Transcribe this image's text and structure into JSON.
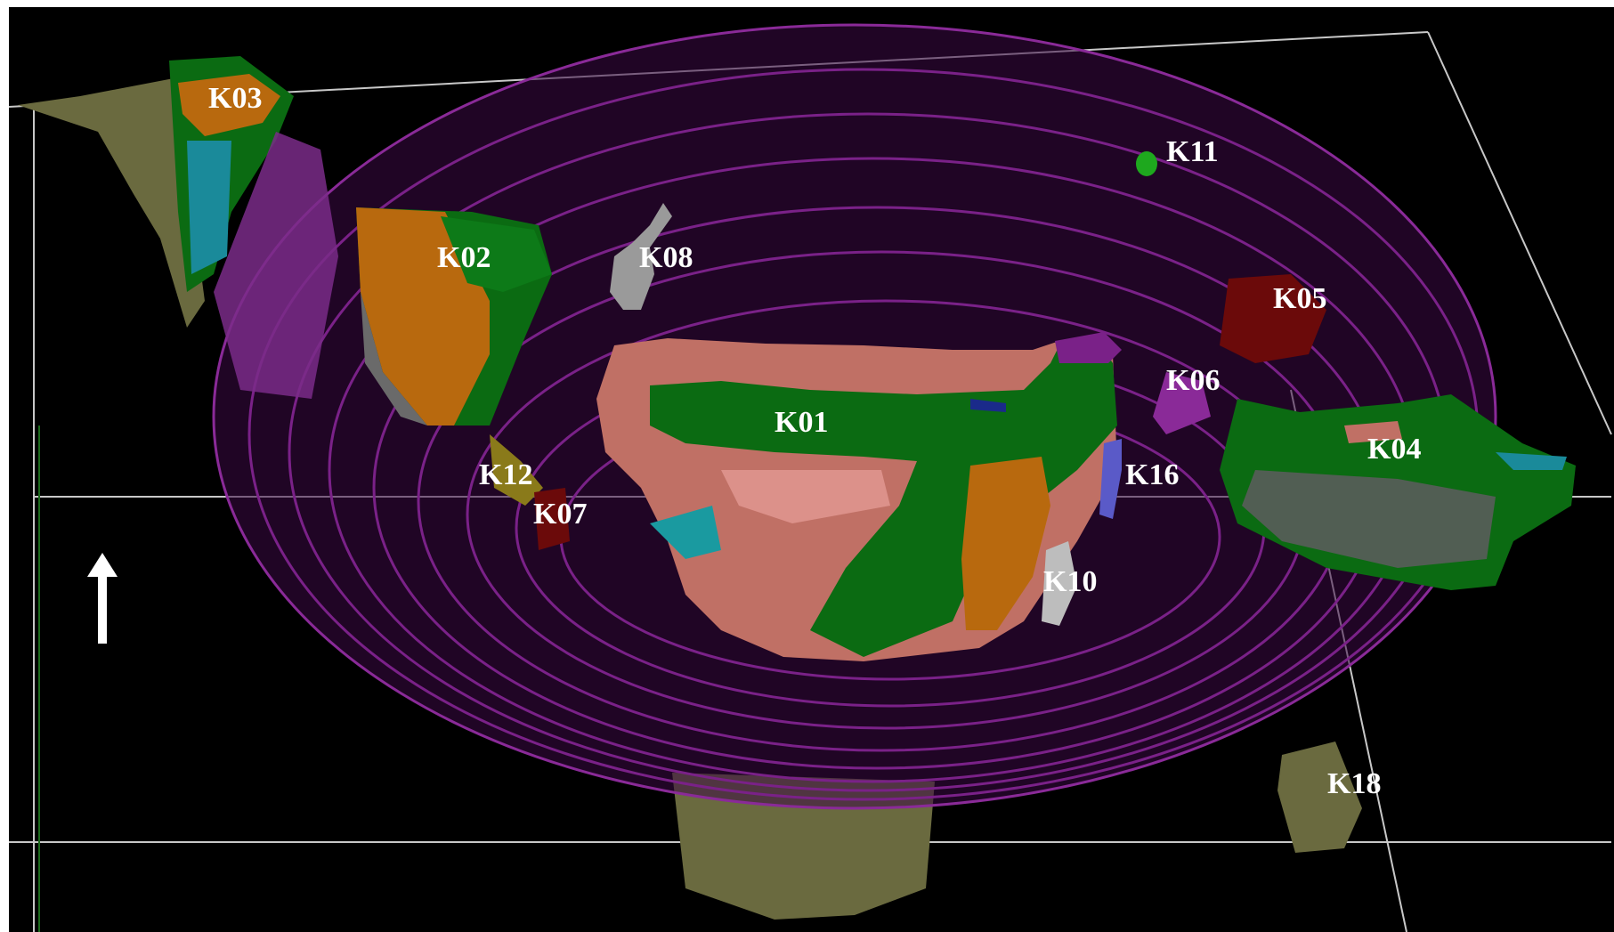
{
  "scene": {
    "labels": {
      "k03": "K03",
      "k02": "K02",
      "k08": "K08",
      "k11": "K11",
      "k05": "K05",
      "k06": "K06",
      "k04": "K04",
      "k01": "K01",
      "k12": "K12",
      "k07": "K07",
      "k16": "K16",
      "k10": "K10",
      "k18": "K18"
    },
    "colors": {
      "background": "#000000",
      "pit_shell": "#6a1a78",
      "green_body": "#0b6b12",
      "orange_body": "#b8690e",
      "salmon_body": "#c07065",
      "olive_body": "#6a6a3f",
      "red_body": "#6b0a0a",
      "grey_body": "#9a9a9a",
      "bounding_box": "#c8c8c8",
      "arrow": "#ffffff"
    }
  }
}
